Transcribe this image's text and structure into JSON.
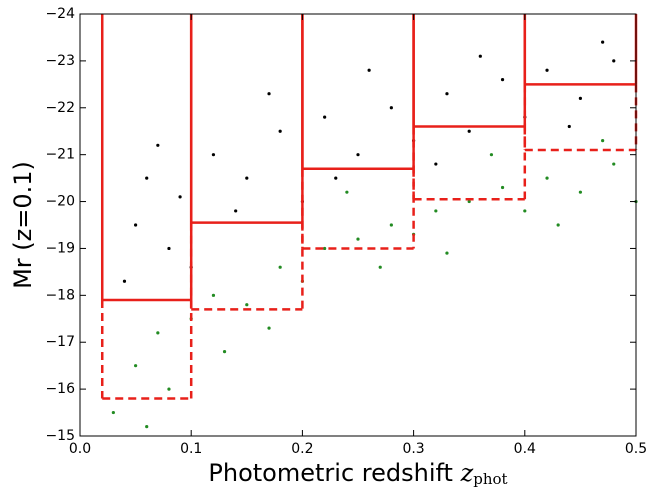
{
  "chart_data": {
    "type": "scatter",
    "x_label": "Photometric redshift",
    "x_label_symbol": "z",
    "x_label_subscript": "phot",
    "y_label": "Mr (z=0.1)",
    "xlim": [
      0.0,
      0.5
    ],
    "ylim": [
      -15,
      -24
    ],
    "xticks": [
      {
        "value": 0.0,
        "label": "0.0"
      },
      0.1,
      0.2,
      0.3,
      0.4,
      0.5
    ],
    "yticks": [
      {
        "value": -15,
        "label": "−15"
      },
      {
        "value": -16,
        "label": "−16"
      },
      {
        "value": -17,
        "label": "−17"
      },
      {
        "value": -18,
        "label": "−18"
      },
      {
        "value": -19,
        "label": "−19"
      },
      {
        "value": -20,
        "label": "−20"
      },
      {
        "value": -21,
        "label": "−21"
      },
      {
        "value": -22,
        "label": "−22"
      },
      {
        "value": -23,
        "label": "−23"
      },
      {
        "value": -24,
        "label": "−24"
      }
    ],
    "series": [
      {
        "color": "#000000",
        "x": [
          0.05,
          0.06,
          0.08,
          0.12,
          0.15,
          0.18,
          0.2,
          0.22,
          0.25,
          0.28,
          0.3,
          0.33,
          0.35,
          0.38,
          0.4,
          0.42,
          0.45,
          0.48,
          0.14,
          0.1,
          0.07,
          0.17,
          0.26,
          0.32,
          0.36,
          0.44,
          0.47,
          0.04,
          0.09,
          0.23
        ],
        "y": [
          -19.5,
          -20.5,
          -19,
          -21,
          -20.5,
          -21.5,
          -20,
          -21.8,
          -21,
          -22,
          -21.3,
          -22.3,
          -21.5,
          -22.6,
          -21.8,
          -22.8,
          -22.2,
          -23,
          -19.8,
          -18.6,
          -21.2,
          -22.3,
          -22.8,
          -20.8,
          -23.1,
          -21.6,
          -23.4,
          -18.3,
          -20.1,
          -20.5
        ]
      },
      {
        "color": "#228b22",
        "x": [
          0.03,
          0.05,
          0.07,
          0.08,
          0.1,
          0.12,
          0.15,
          0.18,
          0.2,
          0.22,
          0.25,
          0.28,
          0.3,
          0.32,
          0.35,
          0.38,
          0.4,
          0.42,
          0.45,
          0.48,
          0.5,
          0.06,
          0.13,
          0.17,
          0.27,
          0.33,
          0.43,
          0.47,
          0.37,
          0.24
        ],
        "y": [
          -15.5,
          -16.5,
          -17.2,
          -16,
          -17.5,
          -18,
          -17.8,
          -18.6,
          -18.3,
          -19,
          -19.2,
          -19.5,
          -19.3,
          -19.8,
          -20,
          -20.3,
          -19.8,
          -20.5,
          -20.2,
          -20.8,
          -20,
          -15.2,
          -16.8,
          -17.3,
          -18.6,
          -18.9,
          -19.5,
          -21.3,
          -21,
          -20.2
        ]
      }
    ],
    "box_color": "#e8201a",
    "boxes": [
      {
        "x": [
          0.02,
          0.1
        ],
        "bright_limit": -17.9,
        "faint_limit": -15.8
      },
      {
        "x": [
          0.1,
          0.2
        ],
        "bright_limit": -19.55,
        "faint_limit": -17.7
      },
      {
        "x": [
          0.2,
          0.3
        ],
        "bright_limit": -20.7,
        "faint_limit": -19.0
      },
      {
        "x": [
          0.3,
          0.4
        ],
        "bright_limit": -21.6,
        "faint_limit": -20.05
      },
      {
        "x": [
          0.4,
          0.5
        ],
        "bright_limit": -22.5,
        "faint_limit": -21.1
      }
    ]
  }
}
